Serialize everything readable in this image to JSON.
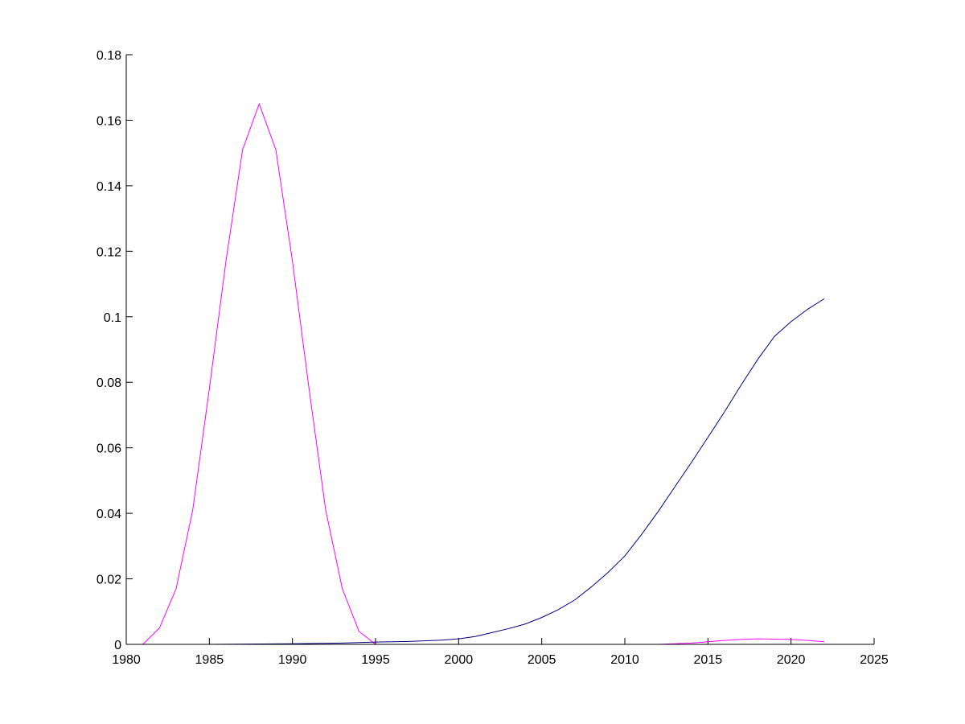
{
  "chart_data": {
    "type": "line",
    "title": "",
    "xlabel": "",
    "ylabel": "",
    "xlim": [
      1980,
      2025
    ],
    "ylim": [
      0,
      0.18
    ],
    "xticks": [
      1980,
      1985,
      1990,
      1995,
      2000,
      2005,
      2010,
      2015,
      2020,
      2025
    ],
    "xtick_labels": [
      "1980",
      "1985",
      "1990",
      "1995",
      "2000",
      "2005",
      "2010",
      "2015",
      "2020",
      "2025"
    ],
    "yticks": [
      0,
      0.02,
      0.04,
      0.06,
      0.08,
      0.1,
      0.12,
      0.14,
      0.16,
      0.18
    ],
    "ytick_labels": [
      "0",
      "0.02",
      "0.04",
      "0.06",
      "0.08",
      "0.1",
      "0.12",
      "0.14",
      "0.16",
      "0.18"
    ],
    "grid": false,
    "legend": "none",
    "series": [
      {
        "color": "#ff00ff",
        "x": [
          1980,
          1981,
          1982,
          1983,
          1984,
          1985,
          1986,
          1987,
          1988,
          1989,
          1990,
          1991,
          1992,
          1993,
          1994,
          1995
        ],
        "y": [
          0,
          0,
          0.005,
          0.017,
          0.041,
          0.078,
          0.117,
          0.151,
          0.165,
          0.151,
          0.117,
          0.078,
          0.041,
          0.017,
          0.004,
          0
        ]
      },
      {
        "color": "#ff00ff",
        "x": [
          1995,
          2000,
          2005,
          2010
        ],
        "y": [
          0,
          0,
          0,
          0
        ]
      },
      {
        "color": "#ff00ff",
        "x": [
          2010.5,
          2012,
          2013,
          2014,
          2015,
          2016,
          2017,
          2018,
          2019,
          2020,
          2021,
          2022
        ],
        "y": [
          0,
          0,
          0.0002,
          0.0004,
          0.0008,
          0.0012,
          0.0015,
          0.0017,
          0.0016,
          0.0015,
          0.0012,
          0.0008
        ]
      },
      {
        "color": "#000080",
        "x": [
          1980,
          1985,
          1990,
          1993,
          1995,
          1997,
          1999,
          2000,
          2001,
          2002,
          2003,
          2004,
          2005,
          2006,
          2007,
          2008,
          2009,
          2010,
          2011,
          2012,
          2013,
          2014,
          2015,
          2016,
          2017,
          2018,
          2019,
          2020,
          2021,
          2022
        ],
        "y": [
          0,
          0,
          0.0002,
          0.0004,
          0.0007,
          0.0009,
          0.0013,
          0.0017,
          0.0024,
          0.0036,
          0.0048,
          0.0062,
          0.0082,
          0.0106,
          0.0136,
          0.0176,
          0.022,
          0.027,
          0.0335,
          0.0405,
          0.048,
          0.0555,
          0.0632,
          0.071,
          0.0792,
          0.087,
          0.094,
          0.0985,
          0.1023,
          0.1055
        ]
      }
    ]
  }
}
